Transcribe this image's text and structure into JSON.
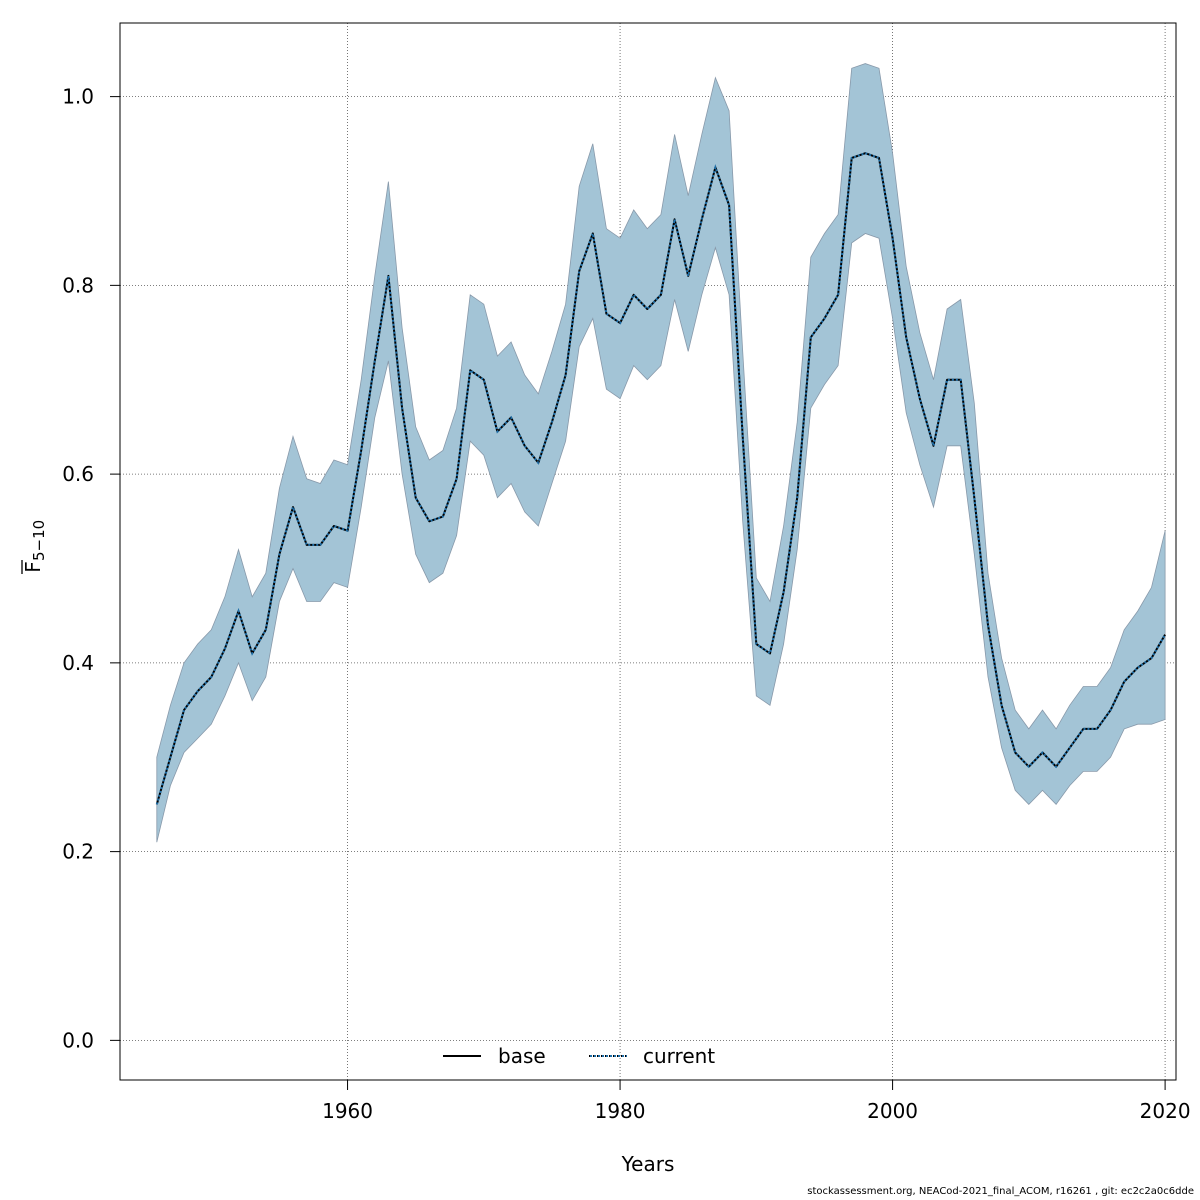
{
  "chart_data": {
    "type": "line",
    "xlabel": "Years",
    "ylabel": "F",
    "ylabel_sub": "5−10",
    "xlim": [
      1943.3,
      2020.8
    ],
    "ylim": [
      -0.042,
      1.078
    ],
    "xticks": [
      1960,
      1980,
      2000,
      2020
    ],
    "yticks": [
      0.0,
      0.2,
      0.4,
      0.6,
      0.8,
      1.0
    ],
    "ytick_labels": [
      "0.0",
      "0.2",
      "0.4",
      "0.6",
      "0.8",
      "1.0"
    ],
    "grid": true,
    "legend": {
      "placement": "bottom-center",
      "entries": [
        {
          "name": "base",
          "style": "solid"
        },
        {
          "name": "current",
          "style": "dotted"
        }
      ]
    },
    "band_color": "#a3c4d6",
    "band_stroke": "#8899aa",
    "series": [
      {
        "name": "base",
        "x": [
          1946,
          1947,
          1948,
          1949,
          1950,
          1951,
          1952,
          1953,
          1954,
          1955,
          1956,
          1957,
          1958,
          1959,
          1960,
          1961,
          1962,
          1963,
          1964,
          1965,
          1966,
          1967,
          1968,
          1969,
          1970,
          1971,
          1972,
          1973,
          1974,
          1975,
          1976,
          1977,
          1978,
          1979,
          1980,
          1981,
          1982,
          1983,
          1984,
          1985,
          1986,
          1987,
          1988,
          1989,
          1990,
          1991,
          1992,
          1993,
          1994,
          1995,
          1996,
          1997,
          1998,
          1999,
          2000,
          2001,
          2002,
          2003,
          2004,
          2005,
          2006,
          2007,
          2008,
          2009,
          2010,
          2011,
          2012,
          2013,
          2014,
          2015,
          2016,
          2017,
          2018,
          2019,
          2020
        ],
        "y": [
          0.25,
          0.3,
          0.35,
          0.37,
          0.385,
          0.415,
          0.455,
          0.41,
          0.435,
          0.515,
          0.565,
          0.525,
          0.525,
          0.545,
          0.54,
          0.625,
          0.72,
          0.81,
          0.67,
          0.575,
          0.55,
          0.555,
          0.595,
          0.71,
          0.7,
          0.645,
          0.66,
          0.63,
          0.612,
          0.655,
          0.705,
          0.815,
          0.855,
          0.77,
          0.76,
          0.79,
          0.775,
          0.79,
          0.87,
          0.81,
          0.87,
          0.925,
          0.885,
          0.64,
          0.42,
          0.41,
          0.475,
          0.575,
          0.745,
          0.765,
          0.79,
          0.935,
          0.94,
          0.935,
          0.85,
          0.745,
          0.68,
          0.63,
          0.7,
          0.7,
          0.575,
          0.44,
          0.355,
          0.305,
          0.29,
          0.305,
          0.29,
          0.31,
          0.33,
          0.33,
          0.35,
          0.38,
          0.395,
          0.405,
          0.43
        ],
        "lower": [
          0.21,
          0.27,
          0.305,
          0.32,
          0.335,
          0.365,
          0.4,
          0.36,
          0.385,
          0.465,
          0.5,
          0.465,
          0.465,
          0.485,
          0.48,
          0.565,
          0.66,
          0.72,
          0.6,
          0.515,
          0.485,
          0.495,
          0.535,
          0.635,
          0.62,
          0.575,
          0.59,
          0.56,
          0.545,
          0.59,
          0.635,
          0.735,
          0.765,
          0.69,
          0.68,
          0.715,
          0.7,
          0.715,
          0.785,
          0.73,
          0.79,
          0.84,
          0.79,
          0.55,
          0.365,
          0.355,
          0.42,
          0.52,
          0.67,
          0.695,
          0.715,
          0.845,
          0.855,
          0.85,
          0.765,
          0.665,
          0.61,
          0.565,
          0.63,
          0.63,
          0.515,
          0.385,
          0.31,
          0.265,
          0.25,
          0.265,
          0.25,
          0.27,
          0.285,
          0.285,
          0.3,
          0.33,
          0.335,
          0.335,
          0.34
        ],
        "upper": [
          0.3,
          0.355,
          0.4,
          0.42,
          0.435,
          0.47,
          0.52,
          0.47,
          0.495,
          0.585,
          0.64,
          0.595,
          0.59,
          0.615,
          0.61,
          0.7,
          0.81,
          0.91,
          0.755,
          0.65,
          0.615,
          0.625,
          0.67,
          0.79,
          0.78,
          0.725,
          0.74,
          0.705,
          0.685,
          0.73,
          0.78,
          0.905,
          0.95,
          0.86,
          0.85,
          0.88,
          0.86,
          0.875,
          0.96,
          0.895,
          0.96,
          1.02,
          0.985,
          0.73,
          0.49,
          0.465,
          0.545,
          0.655,
          0.83,
          0.855,
          0.875,
          1.03,
          1.035,
          1.03,
          0.94,
          0.82,
          0.75,
          0.7,
          0.775,
          0.785,
          0.675,
          0.495,
          0.405,
          0.35,
          0.33,
          0.35,
          0.33,
          0.355,
          0.375,
          0.375,
          0.395,
          0.435,
          0.455,
          0.48,
          0.54
        ]
      },
      {
        "name": "current",
        "x": [
          1946,
          1947,
          1948,
          1949,
          1950,
          1951,
          1952,
          1953,
          1954,
          1955,
          1956,
          1957,
          1958,
          1959,
          1960,
          1961,
          1962,
          1963,
          1964,
          1965,
          1966,
          1967,
          1968,
          1969,
          1970,
          1971,
          1972,
          1973,
          1974,
          1975,
          1976,
          1977,
          1978,
          1979,
          1980,
          1981,
          1982,
          1983,
          1984,
          1985,
          1986,
          1987,
          1988,
          1989,
          1990,
          1991,
          1992,
          1993,
          1994,
          1995,
          1996,
          1997,
          1998,
          1999,
          2000,
          2001,
          2002,
          2003,
          2004,
          2005,
          2006,
          2007,
          2008,
          2009,
          2010,
          2011,
          2012,
          2013,
          2014,
          2015,
          2016,
          2017,
          2018,
          2019,
          2020
        ],
        "y": [
          0.25,
          0.3,
          0.35,
          0.37,
          0.385,
          0.415,
          0.455,
          0.41,
          0.435,
          0.515,
          0.565,
          0.525,
          0.525,
          0.545,
          0.54,
          0.625,
          0.72,
          0.81,
          0.67,
          0.575,
          0.55,
          0.555,
          0.595,
          0.71,
          0.7,
          0.645,
          0.66,
          0.63,
          0.612,
          0.655,
          0.705,
          0.815,
          0.855,
          0.77,
          0.76,
          0.79,
          0.775,
          0.79,
          0.87,
          0.81,
          0.87,
          0.925,
          0.885,
          0.64,
          0.42,
          0.41,
          0.475,
          0.575,
          0.745,
          0.765,
          0.79,
          0.935,
          0.94,
          0.935,
          0.85,
          0.745,
          0.68,
          0.63,
          0.7,
          0.7,
          0.575,
          0.44,
          0.355,
          0.305,
          0.29,
          0.305,
          0.29,
          0.31,
          0.33,
          0.33,
          0.35,
          0.38,
          0.395,
          0.405,
          0.43
        ]
      }
    ]
  },
  "footer": "stockassessment.org, NEACod-2021_final_ACOM, r16261 , git: ec2c2a0c6dde"
}
